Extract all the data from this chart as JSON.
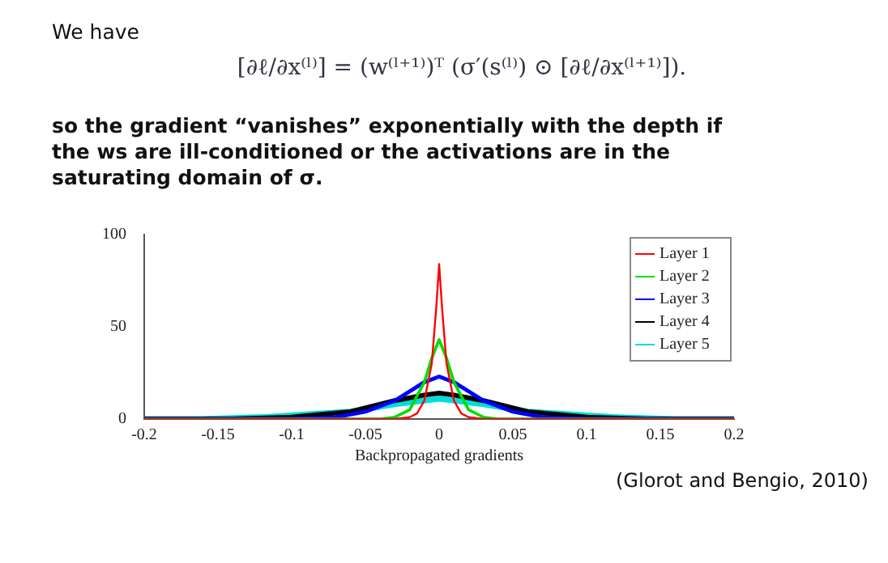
{
  "chart_data": {
    "type": "line",
    "xlabel": "Backpropagated gradients",
    "annotations": [
      "We have",
      "[∂ℓ/∂x⁽ˡ⁾] = (w⁽ˡ⁺¹⁾)ᵀ (σ′(s⁽ˡ⁾) ⊙ [∂ℓ/∂x⁽ˡ⁺¹⁾]).",
      "so the gradient “vanishes” exponentially with the depth if the ws are ill-conditioned or the activations are in the saturating domain of σ.",
      "(Glorot and Bengio, 2010)"
    ],
    "xlim": [
      -0.2,
      0.2
    ],
    "xticks": [
      -0.2,
      -0.15,
      -0.1,
      -0.05,
      0,
      0.05,
      0.1,
      0.15,
      0.2
    ],
    "ylim": [
      0,
      100
    ],
    "yticks": [
      0,
      50,
      100
    ],
    "legend": "top right",
    "marker": "none",
    "line_style": "solid",
    "series": [
      {
        "name": "Layer 1",
        "color": "#ff0000",
        "x": [
          -0.2,
          -0.03,
          -0.02,
          -0.015,
          -0.01,
          -0.005,
          -0.002,
          0,
          0.002,
          0.005,
          0.01,
          0.015,
          0.02,
          0.03,
          0.2
        ],
        "values": [
          0,
          0,
          1,
          3,
          10,
          30,
          60,
          84,
          60,
          30,
          10,
          3,
          1,
          0,
          0
        ]
      },
      {
        "name": "Layer 2",
        "color": "#00dd00",
        "x": [
          -0.2,
          -0.04,
          -0.03,
          -0.02,
          -0.01,
          -0.005,
          0,
          0.005,
          0.01,
          0.02,
          0.03,
          0.04,
          0.2
        ],
        "values": [
          0,
          0,
          1,
          5,
          20,
          33,
          43,
          33,
          20,
          5,
          1,
          0,
          0
        ]
      },
      {
        "name": "Layer 3",
        "color": "#0000ff",
        "x": [
          -0.2,
          -0.1,
          -0.07,
          -0.05,
          -0.03,
          -0.01,
          0,
          0.01,
          0.03,
          0.05,
          0.07,
          0.1,
          0.2
        ],
        "values": [
          0,
          0,
          1,
          4,
          10,
          20,
          23,
          20,
          10,
          4,
          1,
          0,
          0
        ]
      },
      {
        "name": "Layer 4",
        "color": "#000000",
        "x": [
          -0.2,
          -0.14,
          -0.1,
          -0.06,
          -0.03,
          -0.01,
          0,
          0.01,
          0.03,
          0.06,
          0.1,
          0.14,
          0.2
        ],
        "values": [
          0,
          0,
          1,
          4,
          10,
          13,
          14,
          13,
          10,
          4,
          1,
          0,
          0
        ]
      },
      {
        "name": "Layer 5",
        "color": "#00dddd",
        "x": [
          -0.2,
          -0.16,
          -0.12,
          -0.06,
          -0.03,
          -0.01,
          0,
          0.01,
          0.03,
          0.06,
          0.12,
          0.16,
          0.2
        ],
        "values": [
          0,
          0,
          1,
          4,
          8,
          10,
          11,
          10,
          8,
          4,
          1,
          0,
          0
        ]
      }
    ]
  }
}
